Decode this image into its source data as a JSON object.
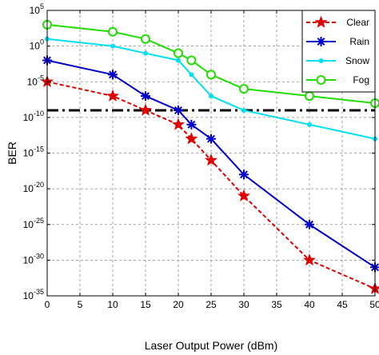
{
  "chart_data": {
    "type": "line",
    "title": "",
    "xlabel": "Laser Output Power (dBm)",
    "ylabel": "BER",
    "x_ticks": [
      "0",
      "5",
      "10",
      "15",
      "20",
      "25",
      "30",
      "35",
      "40",
      "45",
      "50"
    ],
    "y_tick_exponents": [
      "5",
      "0",
      "-5",
      "-10",
      "-15",
      "-20",
      "-25",
      "-30",
      "-35"
    ],
    "y_tick_base": "10",
    "xlim": [
      0,
      50
    ],
    "ylim": [
      1e-35,
      100000.0
    ],
    "y_scale": "log",
    "grid": true,
    "grid_style": "dashed",
    "legend_position": "top-right",
    "threshold": {
      "y": 1e-09,
      "style": "dash-dot",
      "color": "#000000"
    },
    "series": [
      {
        "name": "Clear",
        "color": "#e00000",
        "line_style": "dashed",
        "marker": "star",
        "x": [
          0,
          10,
          15,
          20,
          22,
          25,
          30,
          40,
          50
        ],
        "y": [
          1e-05,
          1e-07,
          1e-09,
          1e-11,
          1e-13,
          1e-16,
          1e-21,
          1e-30,
          1e-34
        ]
      },
      {
        "name": "Rain",
        "color": "#0000c8",
        "line_style": "solid",
        "marker": "asterisk",
        "x": [
          0,
          10,
          15,
          20,
          22,
          25,
          30,
          40,
          50
        ],
        "y": [
          0.01,
          0.0001,
          1e-07,
          1e-09,
          1e-11,
          1e-13,
          1e-18,
          1e-25,
          1e-31
        ]
      },
      {
        "name": "Snow",
        "color": "#00e0f0",
        "line_style": "solid",
        "marker": "dot",
        "x": [
          0,
          10,
          15,
          20,
          22,
          25,
          30,
          40,
          50
        ],
        "y": [
          10.0,
          1.0,
          0.1,
          0.01,
          0.0001,
          1e-07,
          1e-09,
          1e-11,
          1e-13
        ]
      },
      {
        "name": "Fog",
        "color": "#22dd00",
        "line_style": "solid",
        "marker": "circle",
        "x": [
          0,
          10,
          15,
          20,
          22,
          25,
          30,
          40,
          50
        ],
        "y": [
          1000.0,
          100.0,
          10.0,
          0.1,
          0.01,
          0.0001,
          1e-06,
          1e-07,
          1e-08
        ]
      }
    ]
  }
}
